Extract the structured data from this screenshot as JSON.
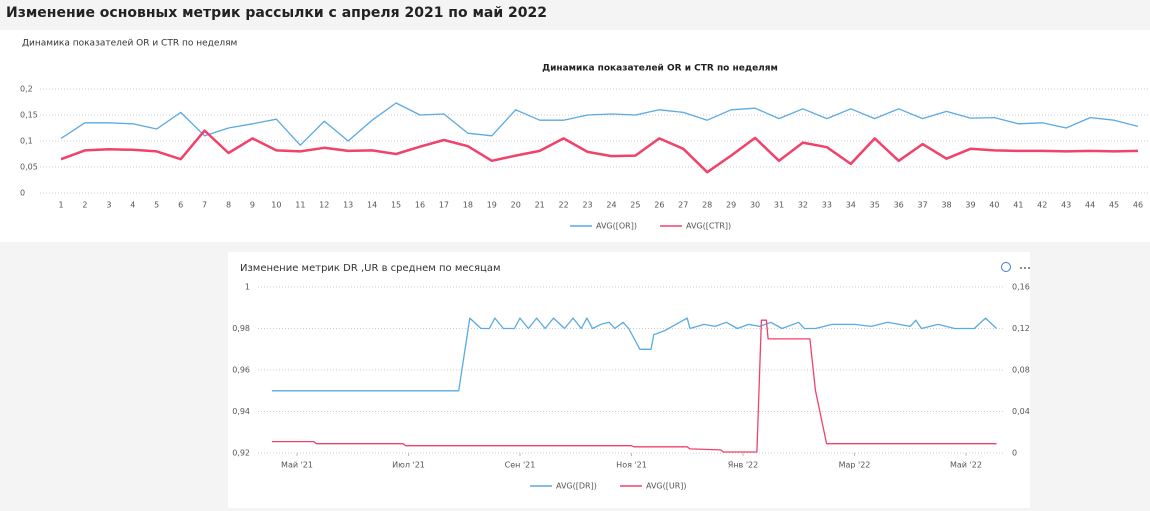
{
  "header": {
    "title": "Изменение основных метрик рассылки с апреля 2021 по май 2022"
  },
  "chart_data": [
    {
      "type": "line",
      "panel_title": "Динамика показателей OR и CTR по неделям",
      "title": "Динамика показателей OR и CTR по неделям",
      "categories": [
        1,
        2,
        3,
        4,
        5,
        6,
        7,
        8,
        9,
        10,
        11,
        12,
        13,
        14,
        15,
        16,
        17,
        18,
        19,
        20,
        21,
        22,
        23,
        24,
        25,
        26,
        27,
        28,
        29,
        30,
        31,
        32,
        33,
        34,
        35,
        36,
        37,
        38,
        39,
        40,
        41,
        42,
        43,
        44,
        45,
        46
      ],
      "series": [
        {
          "name": "AVG([OR])",
          "color": "#5aaae3",
          "values": [
            0.105,
            0.135,
            0.135,
            0.133,
            0.123,
            0.155,
            0.11,
            0.125,
            0.133,
            0.142,
            0.092,
            0.138,
            0.1,
            0.14,
            0.173,
            0.15,
            0.152,
            0.115,
            0.11,
            0.16,
            0.14,
            0.14,
            0.15,
            0.152,
            0.15,
            0.16,
            0.155,
            0.14,
            0.16,
            0.163,
            0.143,
            0.162,
            0.143,
            0.162,
            0.143,
            0.162,
            0.143,
            0.157,
            0.144,
            0.145,
            0.133,
            0.135,
            0.125,
            0.145,
            0.14,
            0.128
          ]
        },
        {
          "name": "AVG([CTR])",
          "color": "#f0426a",
          "values": [
            0.065,
            0.082,
            0.084,
            0.083,
            0.08,
            0.065,
            0.12,
            0.077,
            0.105,
            0.082,
            0.08,
            0.087,
            0.081,
            0.082,
            0.075,
            0.089,
            0.102,
            0.09,
            0.062,
            0.072,
            0.081,
            0.105,
            0.079,
            0.071,
            0.072,
            0.105,
            0.085,
            0.04,
            0.072,
            0.106,
            0.062,
            0.097,
            0.088,
            0.056,
            0.105,
            0.062,
            0.094,
            0.066,
            0.085,
            0.082,
            0.081,
            0.081,
            0.08,
            0.081,
            0.08,
            0.081
          ]
        }
      ],
      "ylim": [
        0,
        0.2
      ],
      "yticks": [
        0,
        {
          "value": 0.05,
          "label": "0,05"
        },
        {
          "value": 0.1,
          "label": "0,1"
        },
        {
          "value": 0.15,
          "label": "0,15"
        },
        {
          "value": 0.2,
          "label": "0,2"
        }
      ],
      "grid": true,
      "legend": "bottom"
    },
    {
      "type": "line",
      "title": "Изменение метрик DR ,UR в среднем по месяцам",
      "series": [
        {
          "name": "AVG([DR])",
          "color": "#5aaae3",
          "x": [
            4.55,
            7.9,
            8.1,
            8.3,
            8.45,
            8.55,
            8.7,
            8.9,
            9.0,
            9.15,
            9.3,
            9.45,
            9.6,
            9.8,
            9.95,
            10.1,
            10.2,
            10.3,
            10.45,
            10.6,
            10.7,
            10.85,
            10.95,
            11.05,
            11.15,
            11.35,
            11.4,
            11.6,
            12.0,
            12.05,
            12.3,
            12.5,
            12.7,
            12.9,
            13.1,
            13.3,
            13.5,
            13.7,
            14.0,
            14.1,
            14.3,
            14.6,
            15.0,
            15.3,
            15.6,
            16.0,
            16.1,
            16.2,
            16.5,
            16.8,
            17.15,
            17.35,
            17.55
          ],
          "values": [
            0.95,
            0.95,
            0.985,
            0.98,
            0.98,
            0.985,
            0.98,
            0.98,
            0.985,
            0.98,
            0.985,
            0.98,
            0.985,
            0.98,
            0.985,
            0.98,
            0.985,
            0.98,
            0.982,
            0.983,
            0.98,
            0.983,
            0.98,
            0.975,
            0.97,
            0.97,
            0.977,
            0.979,
            0.985,
            0.98,
            0.982,
            0.981,
            0.983,
            0.98,
            0.982,
            0.981,
            0.983,
            0.98,
            0.983,
            0.98,
            0.98,
            0.982,
            0.982,
            0.981,
            0.983,
            0.981,
            0.984,
            0.98,
            0.982,
            0.98,
            0.98,
            0.985,
            0.98
          ]
        },
        {
          "name": "AVG([UR])",
          "color": "#f0426a",
          "axis": "y2",
          "x": [
            4.55,
            5.3,
            5.35,
            6.9,
            6.95,
            11.0,
            11.05,
            12.0,
            12.05,
            12.6,
            12.65,
            13.25,
            13.33,
            13.42,
            13.45,
            14.2,
            14.3,
            14.5,
            17.55
          ],
          "values": [
            0.011,
            0.011,
            0.009,
            0.009,
            0.007,
            0.007,
            0.006,
            0.006,
            0.004,
            0.003,
            0.001,
            0.001,
            0.128,
            0.128,
            0.11,
            0.11,
            0.06,
            0.009,
            0.009
          ]
        }
      ],
      "xlim": [
        4.3,
        17.7
      ],
      "xticks": [
        {
          "value": 5,
          "label": "Май '21"
        },
        {
          "value": 7,
          "label": "Июл '21"
        },
        {
          "value": 9,
          "label": "Сен '21"
        },
        {
          "value": 11,
          "label": "Ноя '21"
        },
        {
          "value": 13,
          "label": "Янв '22"
        },
        {
          "value": 15,
          "label": "Мар '22"
        },
        {
          "value": 17,
          "label": "Май '22"
        }
      ],
      "ylim": [
        0.92,
        1
      ],
      "yticks": [
        {
          "value": 0.92,
          "label": "0,92"
        },
        {
          "value": 0.94,
          "label": "0,94"
        },
        {
          "value": 0.96,
          "label": "0,96"
        },
        {
          "value": 0.98,
          "label": "0,98"
        },
        1
      ],
      "y2lim": [
        0,
        0.16
      ],
      "y2ticks": [
        0,
        {
          "value": 0.04,
          "label": "0,04"
        },
        {
          "value": 0.08,
          "label": "0,08"
        },
        {
          "value": 0.12,
          "label": "0,12"
        },
        {
          "value": 0.16,
          "label": "0,16"
        }
      ],
      "grid": true,
      "legend": "bottom"
    }
  ]
}
